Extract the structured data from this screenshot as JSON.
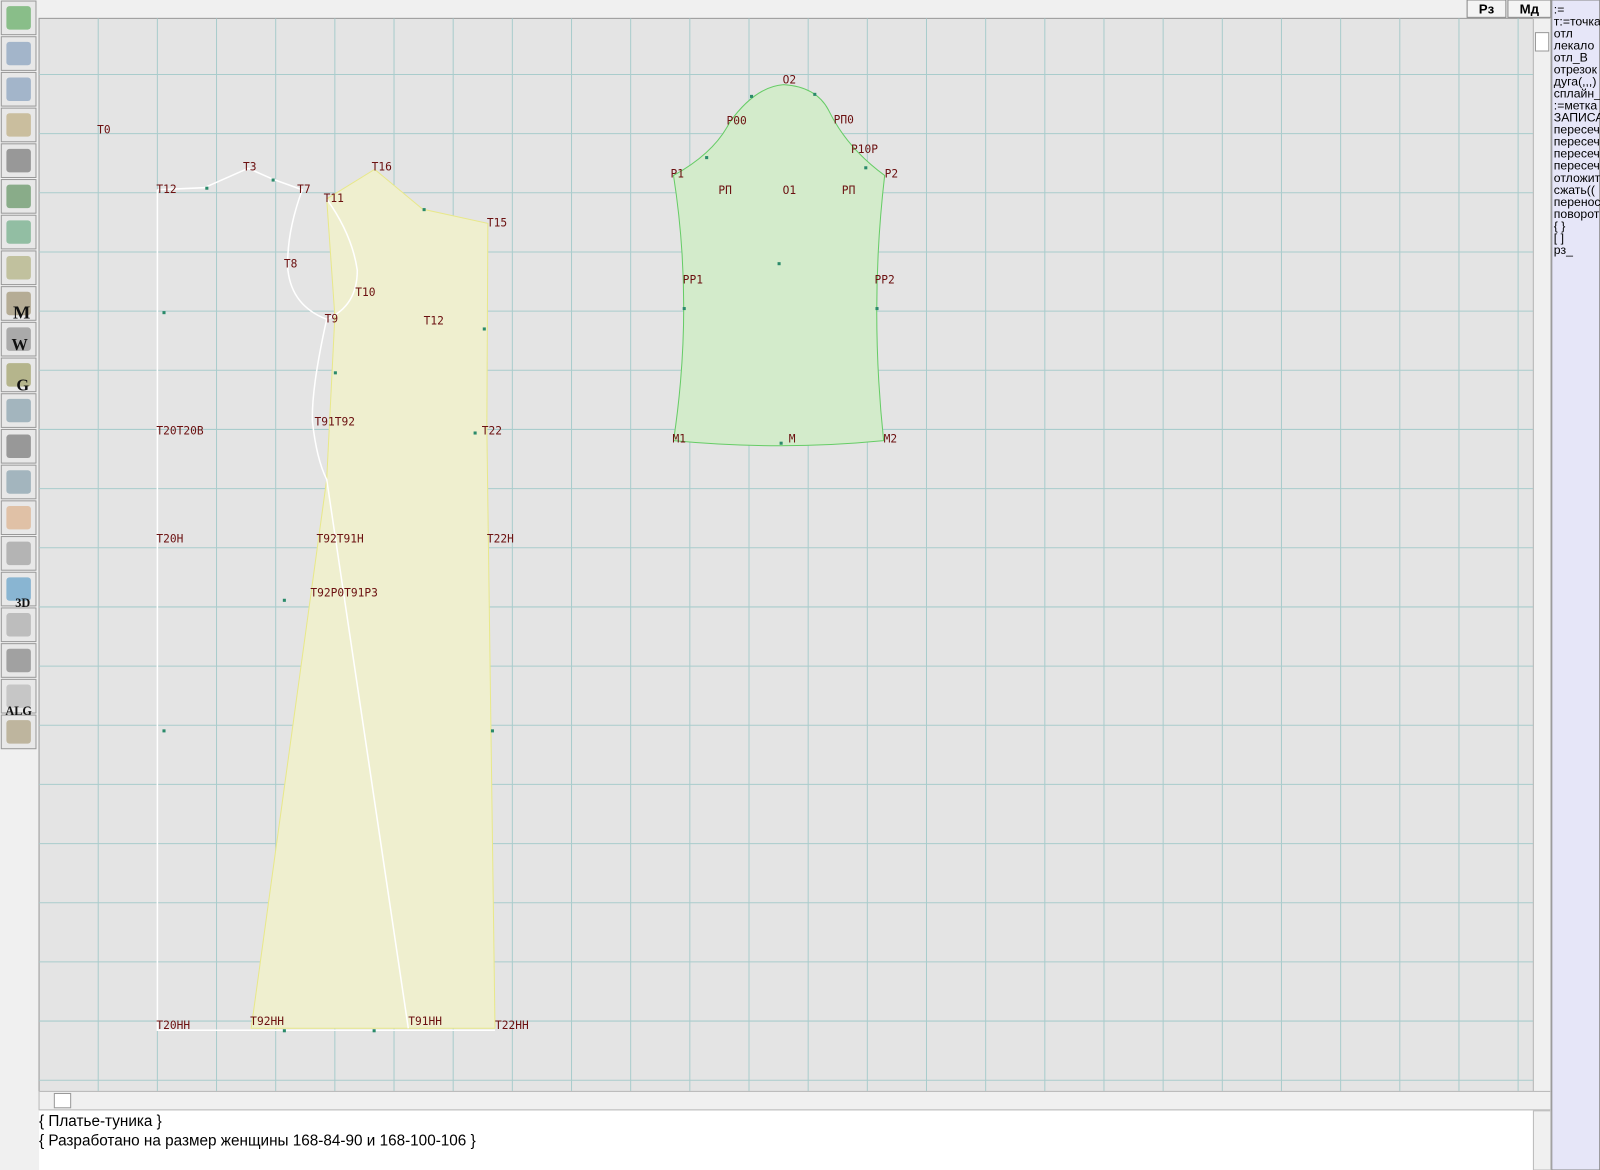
{
  "toolbar": {
    "icon_letters": [
      "M",
      "W",
      "G",
      "3D",
      "ALG"
    ]
  },
  "top_buttons": [
    "Рз",
    "Мд"
  ],
  "commands": [
    ":=",
    "т:=точка",
    "отл",
    "лекало",
    "отл_В",
    "отрезок",
    "дуга(,,,)",
    "сплайн_",
    ":=метка",
    "ЗАПИСА",
    "пересеч",
    "пересеч",
    "пересеч",
    "пересеч",
    "отложит",
    "сжать((",
    "перенос",
    "поворот",
    "{ }",
    "[ ]",
    "рз_"
  ],
  "points": [
    "Т0",
    "Т12",
    "Т3",
    "Т7",
    "Т16",
    "Т11",
    "Т15",
    "Т8",
    "Т10",
    "Т9",
    "Т12",
    "Т91Т92",
    "Т22",
    "Т20Т20В",
    "Т20Н",
    "Т92Т91Н",
    "Т22Н",
    "Т92Р0Т91Р3",
    "Т20НН",
    "Т92НН",
    "Т91НН",
    "Т22НН",
    "О2",
    "Р00",
    "РП0",
    "Р10Р",
    "Р1",
    "Р2",
    "РП",
    "О1",
    "РП",
    "РР1",
    "РР2",
    "М1",
    "М",
    "М2"
  ],
  "notes": [
    "{ Платье-туника }",
    "{ Разработано на размер женщины 168-84-90 и 168-100-106 }"
  ]
}
